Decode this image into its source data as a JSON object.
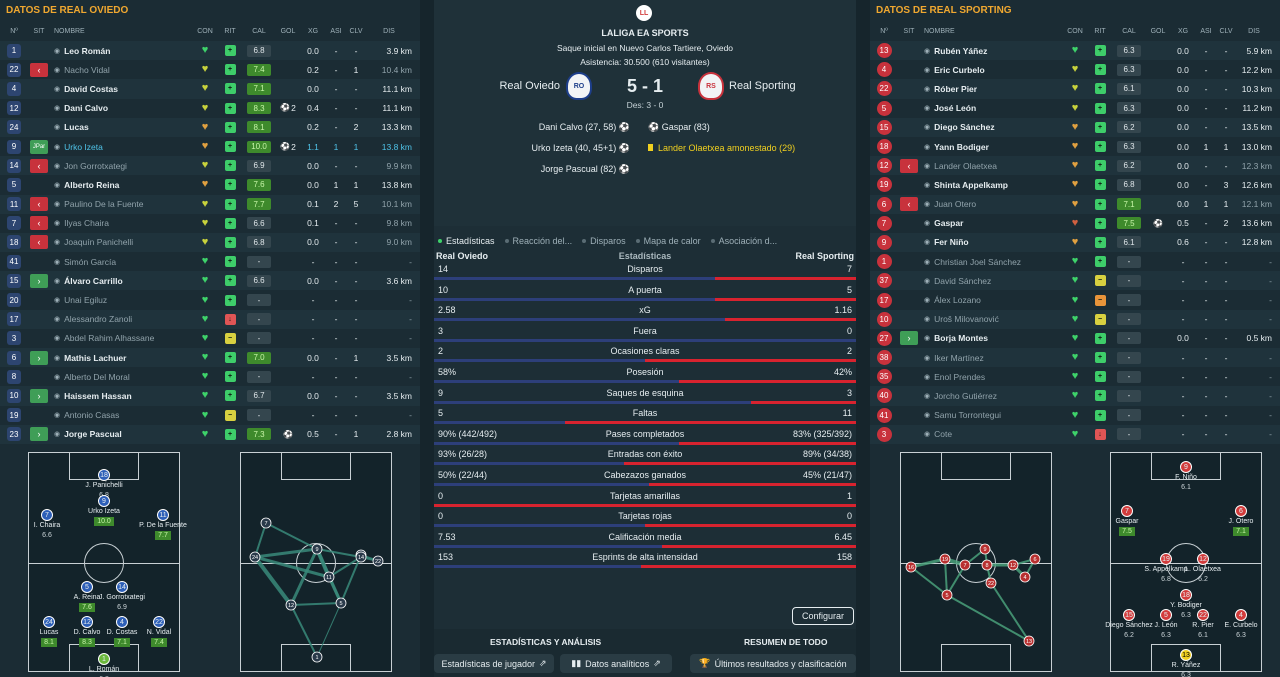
{
  "home": {
    "title": "DATOS DE REAL OVIEDO",
    "cols": {
      "num": "Nº",
      "sit": "SIT",
      "name": "NOMBRE",
      "con": "CON",
      "rit": "RIT",
      "cal": "CAL",
      "gol": "GOL",
      "xg": "XG",
      "asi": "ASI",
      "clv": "CLV",
      "dis": "DIS"
    },
    "players": [
      {
        "num": "1",
        "sit": "",
        "name": "Leo Román",
        "con": "g",
        "rit": "g",
        "cal": "6.8",
        "calg": false,
        "gol": "",
        "xg": "0.0",
        "asi": "-",
        "clv": "-",
        "dis": "3.9 km",
        "dim": false
      },
      {
        "num": "22",
        "sit": "out",
        "name": "Nacho Vidal",
        "con": "y",
        "rit": "g",
        "cal": "7.4",
        "calg": true,
        "gol": "",
        "xg": "0.2",
        "asi": "-",
        "clv": "1",
        "dis": "10.4 km",
        "dim": true
      },
      {
        "num": "4",
        "sit": "",
        "name": "David Costas",
        "con": "y",
        "rit": "g",
        "cal": "7.1",
        "calg": true,
        "gol": "",
        "xg": "0.0",
        "asi": "-",
        "clv": "-",
        "dis": "11.1 km",
        "dim": false
      },
      {
        "num": "12",
        "sit": "",
        "name": "Dani Calvo",
        "con": "y",
        "rit": "g",
        "cal": "8.3",
        "calg": true,
        "gol": "2",
        "xg": "0.4",
        "asi": "-",
        "clv": "-",
        "dis": "11.1 km",
        "dim": false
      },
      {
        "num": "24",
        "sit": "",
        "name": "Lucas",
        "con": "o",
        "rit": "g",
        "cal": "8.1",
        "calg": true,
        "gol": "",
        "xg": "0.2",
        "asi": "-",
        "clv": "2",
        "dis": "13.3 km",
        "dim": false
      },
      {
        "num": "9",
        "sit": "tag",
        "name": "Urko Izeta",
        "con": "o",
        "rit": "g",
        "cal": "10.0",
        "calg": true,
        "gol": "2",
        "xg": "1.1",
        "asi": "1",
        "clv": "1",
        "dis": "13.8 km",
        "dim": false,
        "hl": true
      },
      {
        "num": "14",
        "sit": "out",
        "name": "Jon Gorrotxategi",
        "con": "y",
        "rit": "g",
        "cal": "6.9",
        "calg": false,
        "gol": "",
        "xg": "0.0",
        "asi": "-",
        "clv": "-",
        "dis": "9.9 km",
        "dim": true
      },
      {
        "num": "5",
        "sit": "",
        "name": "Alberto Reina",
        "con": "o",
        "rit": "g",
        "cal": "7.6",
        "calg": true,
        "gol": "",
        "xg": "0.0",
        "asi": "1",
        "clv": "1",
        "dis": "13.8 km",
        "dim": false
      },
      {
        "num": "11",
        "sit": "out",
        "name": "Paulino De la Fuente",
        "con": "y",
        "rit": "g",
        "cal": "7.7",
        "calg": true,
        "gol": "",
        "xg": "0.1",
        "asi": "2",
        "clv": "5",
        "dis": "10.1 km",
        "dim": true
      },
      {
        "num": "7",
        "sit": "out",
        "name": "Ilyas Chaira",
        "con": "y",
        "rit": "g",
        "cal": "6.6",
        "calg": false,
        "gol": "",
        "xg": "0.1",
        "asi": "-",
        "clv": "-",
        "dis": "9.8 km",
        "dim": true
      },
      {
        "num": "18",
        "sit": "out",
        "name": "Joaquín Panichelli",
        "con": "y",
        "rit": "g",
        "cal": "6.8",
        "calg": false,
        "gol": "",
        "xg": "0.0",
        "asi": "-",
        "clv": "-",
        "dis": "9.0 km",
        "dim": true
      },
      {
        "num": "41",
        "sit": "",
        "name": "Simón García",
        "con": "g",
        "rit": "g",
        "cal": "-",
        "calg": false,
        "gol": "",
        "xg": "-",
        "asi": "-",
        "clv": "-",
        "dis": "-",
        "dim": true
      },
      {
        "num": "15",
        "sit": "in",
        "name": "Álvaro Carrillo",
        "con": "g",
        "rit": "g",
        "cal": "6.6",
        "calg": false,
        "gol": "",
        "xg": "0.0",
        "asi": "-",
        "clv": "-",
        "dis": "3.6 km",
        "dim": false
      },
      {
        "num": "20",
        "sit": "",
        "name": "Unai Egiluz",
        "con": "g",
        "rit": "g",
        "cal": "-",
        "calg": false,
        "gol": "",
        "xg": "-",
        "asi": "-",
        "clv": "-",
        "dis": "-",
        "dim": true
      },
      {
        "num": "17",
        "sit": "",
        "name": "Alessandro Zanoli",
        "con": "g",
        "rit": "r",
        "cal": "-",
        "calg": false,
        "gol": "",
        "xg": "-",
        "asi": "-",
        "clv": "-",
        "dis": "-",
        "dim": true
      },
      {
        "num": "3",
        "sit": "",
        "name": "Abdel Rahim Alhassane",
        "con": "g",
        "rit": "y",
        "cal": "-",
        "calg": false,
        "gol": "",
        "xg": "-",
        "asi": "-",
        "clv": "-",
        "dis": "-",
        "dim": true
      },
      {
        "num": "6",
        "sit": "in",
        "name": "Mathis Lachuer",
        "con": "g",
        "rit": "g",
        "cal": "7.0",
        "calg": true,
        "gol": "",
        "xg": "0.0",
        "asi": "-",
        "clv": "1",
        "dis": "3.5 km",
        "dim": false
      },
      {
        "num": "8",
        "sit": "",
        "name": "Alberto Del Moral",
        "con": "g",
        "rit": "g",
        "cal": "-",
        "calg": false,
        "gol": "",
        "xg": "-",
        "asi": "-",
        "clv": "-",
        "dis": "-",
        "dim": true
      },
      {
        "num": "10",
        "sit": "in",
        "name": "Haissem Hassan",
        "con": "g",
        "rit": "g",
        "cal": "6.7",
        "calg": false,
        "gol": "",
        "xg": "0.0",
        "asi": "-",
        "clv": "-",
        "dis": "3.5 km",
        "dim": false
      },
      {
        "num": "19",
        "sit": "",
        "name": "Antonio Casas",
        "con": "g",
        "rit": "y",
        "cal": "-",
        "calg": false,
        "gol": "",
        "xg": "-",
        "asi": "-",
        "clv": "-",
        "dis": "-",
        "dim": true
      },
      {
        "num": "23",
        "sit": "in",
        "name": "Jorge Pascual",
        "con": "g",
        "rit": "g",
        "cal": "7.3",
        "calg": true,
        "gol": "1",
        "xg": "0.5",
        "asi": "-",
        "clv": "1",
        "dis": "2.8 km",
        "dim": false
      }
    ]
  },
  "away": {
    "title": "DATOS DE REAL SPORTING",
    "players": [
      {
        "num": "13",
        "sit": "",
        "name": "Rubén Yáñez",
        "con": "g",
        "rit": "g",
        "cal": "6.3",
        "xg": "0.0",
        "asi": "-",
        "clv": "-",
        "dis": "5.9 km",
        "dim": false
      },
      {
        "num": "4",
        "sit": "",
        "name": "Eric Curbelo",
        "con": "y",
        "rit": "g",
        "cal": "6.3",
        "xg": "0.0",
        "asi": "-",
        "clv": "-",
        "dis": "12.2 km",
        "dim": false
      },
      {
        "num": "22",
        "sit": "",
        "name": "Róber Pier",
        "con": "y",
        "rit": "g",
        "cal": "6.1",
        "xg": "0.0",
        "asi": "-",
        "clv": "-",
        "dis": "10.3 km",
        "dim": false
      },
      {
        "num": "5",
        "sit": "",
        "name": "José León",
        "con": "y",
        "rit": "g",
        "cal": "6.3",
        "xg": "0.0",
        "asi": "-",
        "clv": "-",
        "dis": "11.2 km",
        "dim": false
      },
      {
        "num": "15",
        "sit": "",
        "name": "Diego Sánchez",
        "con": "o",
        "rit": "g",
        "cal": "6.2",
        "xg": "0.0",
        "asi": "-",
        "clv": "-",
        "dis": "13.5 km",
        "dim": false
      },
      {
        "num": "18",
        "sit": "",
        "name": "Yann Bodiger",
        "con": "o",
        "rit": "g",
        "cal": "6.3",
        "xg": "0.0",
        "asi": "1",
        "clv": "1",
        "dis": "13.0 km",
        "dim": false
      },
      {
        "num": "12",
        "sit": "out",
        "name": "Lander Olaetxea",
        "con": "o",
        "rit": "g",
        "cal": "6.2",
        "xg": "0.0",
        "asi": "-",
        "clv": "-",
        "dis": "12.3 km",
        "dim": true
      },
      {
        "num": "19",
        "sit": "",
        "name": "Shinta Appelkamp",
        "con": "o",
        "rit": "g",
        "cal": "6.8",
        "xg": "0.0",
        "asi": "-",
        "clv": "3",
        "dis": "12.6 km",
        "dim": false
      },
      {
        "num": "6",
        "sit": "out",
        "name": "Juan Otero",
        "con": "o",
        "rit": "g",
        "cal": "7.1",
        "calg": true,
        "xg": "0.0",
        "asi": "1",
        "clv": "1",
        "dis": "12.1 km",
        "dim": true
      },
      {
        "num": "7",
        "sit": "",
        "name": "Gaspar",
        "con": "r",
        "rit": "g",
        "cal": "7.5",
        "calg": true,
        "gol": "1",
        "xg": "0.5",
        "asi": "-",
        "clv": "2",
        "dis": "13.6 km",
        "dim": false
      },
      {
        "num": "9",
        "sit": "",
        "name": "Fer Niño",
        "con": "o",
        "rit": "g",
        "cal": "6.1",
        "xg": "0.6",
        "asi": "-",
        "clv": "-",
        "dis": "12.8 km",
        "dim": false
      },
      {
        "num": "1",
        "sit": "",
        "name": "Christian Joel Sánchez",
        "con": "g",
        "rit": "g",
        "cal": "-",
        "xg": "-",
        "asi": "-",
        "clv": "-",
        "dis": "-",
        "dim": true
      },
      {
        "num": "37",
        "sit": "",
        "name": "David Sánchez",
        "con": "g",
        "rit": "y",
        "cal": "-",
        "xg": "-",
        "asi": "-",
        "clv": "-",
        "dis": "-",
        "dim": true
      },
      {
        "num": "17",
        "sit": "",
        "name": "Álex Lozano",
        "con": "g",
        "rit": "o",
        "cal": "-",
        "xg": "-",
        "asi": "-",
        "clv": "-",
        "dis": "-",
        "dim": true
      },
      {
        "num": "10",
        "sit": "",
        "name": "Uroš Milovanović",
        "con": "g",
        "rit": "y",
        "cal": "-",
        "xg": "-",
        "asi": "-",
        "clv": "-",
        "dis": "-",
        "dim": true
      },
      {
        "num": "27",
        "sit": "in",
        "name": "Borja Montes",
        "con": "g",
        "rit": "g",
        "cal": "-",
        "xg": "0.0",
        "asi": "-",
        "clv": "-",
        "dis": "0.5 km",
        "dim": false
      },
      {
        "num": "38",
        "sit": "",
        "name": "Iker Martínez",
        "con": "g",
        "rit": "g",
        "cal": "-",
        "xg": "-",
        "asi": "-",
        "clv": "-",
        "dis": "-",
        "dim": true
      },
      {
        "num": "35",
        "sit": "",
        "name": "Enol Prendes",
        "con": "g",
        "rit": "g",
        "cal": "-",
        "xg": "-",
        "asi": "-",
        "clv": "-",
        "dis": "-",
        "dim": true
      },
      {
        "num": "40",
        "sit": "",
        "name": "Jorcho Gutiérrez",
        "con": "g",
        "rit": "g",
        "cal": "-",
        "xg": "-",
        "asi": "-",
        "clv": "-",
        "dis": "-",
        "dim": true
      },
      {
        "num": "41",
        "sit": "",
        "name": "Samu Torrontegui",
        "con": "g",
        "rit": "g",
        "cal": "-",
        "xg": "-",
        "asi": "-",
        "clv": "-",
        "dis": "-",
        "dim": true
      },
      {
        "num": "3",
        "sit": "",
        "name": "Cote",
        "con": "g",
        "rit": "r",
        "cal": "-",
        "xg": "-",
        "asi": "-",
        "clv": "-",
        "dis": "-",
        "dim": true
      }
    ]
  },
  "match": {
    "comp_badge": "LL",
    "competition": "LALIGA EA SPORTS",
    "kickoff": "Saque inicial en Nuevo Carlos Tartiere, Oviedo",
    "attendance": "Asistencia: 30.500 (610 visitantes)",
    "home_team": "Real Oviedo",
    "away_team": "Real Sporting",
    "score": "5 - 1",
    "breakdown": "Des: 3 - 0",
    "home_events": [
      "Dani Calvo (27, 58)",
      "Urko Izeta (40, 45+1)",
      "Jorge Pascual (82)"
    ],
    "away_events": [
      "Gaspar (83)",
      "Lander Olaetxea amonestado (29)"
    ]
  },
  "tabs": [
    "Estadísticas",
    "Reacción del...",
    "Disparos",
    "Mapa de calor",
    "Asociación d..."
  ],
  "stats": {
    "header": {
      "home": "Real Oviedo",
      "title": "Estadísticas",
      "away": "Real Sporting"
    },
    "rows": [
      {
        "name": "Disparos",
        "home": "14",
        "away": "7",
        "hf": 0.667
      },
      {
        "name": "A puerta",
        "home": "10",
        "away": "5",
        "hf": 0.667
      },
      {
        "name": "xG",
        "home": "2.58",
        "away": "1.16",
        "hf": 0.69
      },
      {
        "name": "Fuera",
        "home": "3",
        "away": "0",
        "hf": 1.0
      },
      {
        "name": "Ocasiones claras",
        "home": "2",
        "away": "2",
        "hf": 0.5
      },
      {
        "name": "Posesión",
        "home": "58%",
        "away": "42%",
        "hf": 0.58
      },
      {
        "name": "Saques de esquina",
        "home": "9",
        "away": "3",
        "hf": 0.75
      },
      {
        "name": "Faltas",
        "home": "5",
        "away": "11",
        "hf": 0.31
      },
      {
        "name": "Pases completados",
        "home": "90% (442/492)",
        "away": "83% (325/392)",
        "hf": 0.58
      },
      {
        "name": "Entradas con éxito",
        "home": "93% (26/28)",
        "away": "89% (34/38)",
        "hf": 0.45
      },
      {
        "name": "Cabezazos ganados",
        "home": "50% (22/44)",
        "away": "45% (21/47)",
        "hf": 0.51
      },
      {
        "name": "Tarjetas amarillas",
        "home": "0",
        "away": "1",
        "hf": 0.0
      },
      {
        "name": "Tarjetas rojas",
        "home": "0",
        "away": "0",
        "hf": 0.5
      },
      {
        "name": "Calificación media",
        "home": "7.53",
        "away": "6.45",
        "hf": 0.54
      },
      {
        "name": "Esprints de alta intensidad",
        "home": "153",
        "away": "158",
        "hf": 0.49
      }
    ]
  },
  "config_button": "Configurar",
  "bottom": {
    "left_title": "ESTADÍSTICAS Y ANÁLISIS",
    "right_title": "RESUMEN DE TODO",
    "btn_player": "Estadísticas de jugador",
    "btn_analytics": "Datos analíticos",
    "btn_results": "Últimos resultados y clasificación"
  },
  "home_formation": [
    {
      "num": "18",
      "name": "J. Panichelli",
      "rating": "6.8",
      "good": false
    },
    {
      "num": "9",
      "name": "Urko Izeta",
      "rating": "10.0",
      "good": true
    },
    {
      "num": "7",
      "name": "I. Chaira",
      "rating": "6.6",
      "good": false
    },
    {
      "num": "11",
      "name": "P. De la Fuente",
      "rating": "7.7",
      "good": true
    },
    {
      "num": "5",
      "name": "A. Reina",
      "rating": "7.6",
      "good": true
    },
    {
      "num": "14",
      "name": "J. Gorrotxategi",
      "rating": "6.9",
      "good": false
    },
    {
      "num": "24",
      "name": "Lucas",
      "rating": "8.1",
      "good": true
    },
    {
      "num": "12",
      "name": "D. Calvo",
      "rating": "8.3",
      "good": true
    },
    {
      "num": "4",
      "name": "D. Costas",
      "rating": "7.1",
      "good": true
    },
    {
      "num": "22",
      "name": "N. Vidal",
      "rating": "7.4",
      "good": true
    },
    {
      "num": "1",
      "name": "L. Román",
      "rating": "6.8",
      "good": false
    }
  ],
  "away_formation": [
    {
      "num": "9",
      "name": "F. Niño",
      "rating": "6.1",
      "good": false
    },
    {
      "num": "7",
      "name": "Gaspar",
      "rating": "7.5",
      "good": true
    },
    {
      "num": "6",
      "name": "J. Otero",
      "rating": "7.1",
      "good": true
    },
    {
      "num": "19",
      "name": "S. Appelkamp",
      "rating": "6.8",
      "good": false
    },
    {
      "num": "12",
      "name": "L. Olaetxea",
      "rating": "6.2",
      "good": false
    },
    {
      "num": "18",
      "name": "Y. Bodiger",
      "rating": "6.3",
      "good": false
    },
    {
      "num": "15",
      "name": "Diego Sánchez",
      "rating": "6.2",
      "good": false
    },
    {
      "num": "5",
      "name": "J. León",
      "rating": "6.3",
      "good": false
    },
    {
      "num": "22",
      "name": "R. Pier",
      "rating": "6.1",
      "good": false
    },
    {
      "num": "4",
      "name": "E. Curbelo",
      "rating": "6.3",
      "good": false
    },
    {
      "num": "13",
      "name": "R. Yáñez",
      "rating": "6.3",
      "good": false
    }
  ],
  "home_network": [
    "7",
    "24",
    "12",
    "1",
    "9",
    "5",
    "4",
    "11",
    "22",
    "14"
  ],
  "away_network": [
    "16",
    "19",
    "4",
    "9",
    "8",
    "22",
    "5",
    "6",
    "13",
    "12",
    "7"
  ]
}
